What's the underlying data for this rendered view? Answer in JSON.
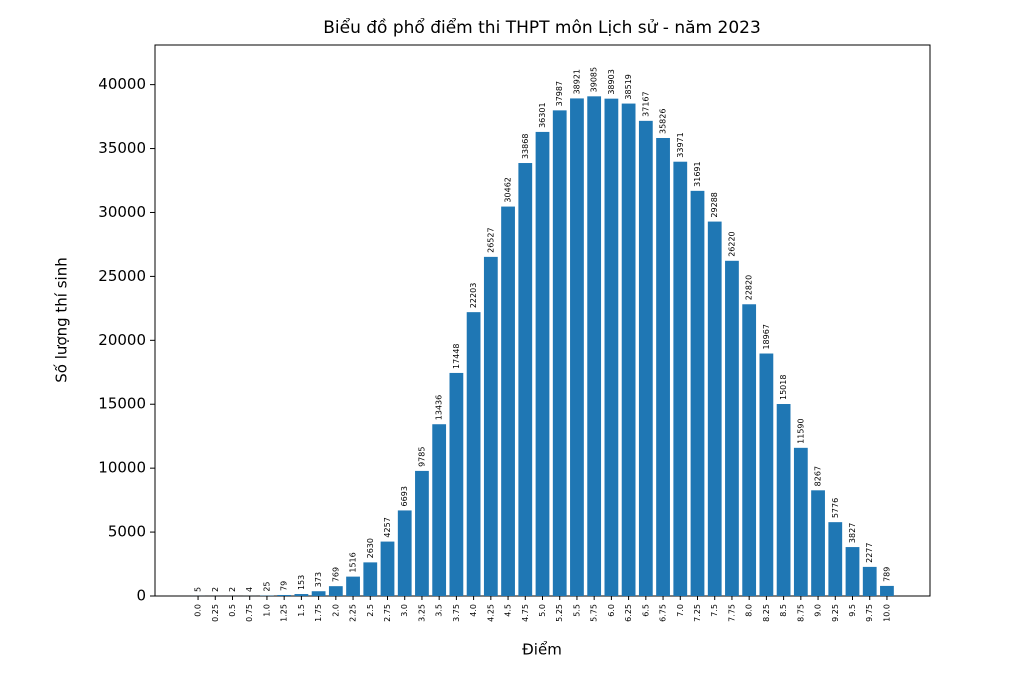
{
  "chart_data": {
    "type": "bar",
    "title": "Biểu đồ phổ điểm thi THPT môn Lịch sử - năm 2023",
    "x_label": "Điểm",
    "y_label": "Số lượng thí sinh",
    "categories": [
      "0.0",
      "0.25",
      "0.5",
      "0.75",
      "1.0",
      "1.25",
      "1.5",
      "1.75",
      "2.0",
      "2.25",
      "2.5",
      "2.75",
      "3.0",
      "3.25",
      "3.5",
      "3.75",
      "4.0",
      "4.25",
      "4.5",
      "4.75",
      "5.0",
      "5.25",
      "5.5",
      "5.75",
      "6.0",
      "6.25",
      "6.5",
      "6.75",
      "7.0",
      "7.25",
      "7.5",
      "7.75",
      "8.0",
      "8.25",
      "8.5",
      "8.75",
      "9.0",
      "9.25",
      "9.5",
      "9.75",
      "10.0"
    ],
    "values": [
      5,
      2,
      2,
      4,
      25,
      79,
      153,
      373,
      769,
      1516,
      2630,
      4257,
      6693,
      9785,
      13436,
      17448,
      22203,
      26527,
      30462,
      33868,
      36301,
      37987,
      38921,
      39085,
      38903,
      38519,
      37167,
      35826,
      33971,
      31691,
      29288,
      26220,
      22820,
      18967,
      15018,
      11590,
      8267,
      5776,
      3827,
      2277,
      789
    ],
    "color": "#1f77b4",
    "ylim": [
      0,
      43100
    ],
    "yticks": [
      0,
      5000,
      10000,
      15000,
      20000,
      25000,
      30000,
      35000,
      40000
    ]
  }
}
